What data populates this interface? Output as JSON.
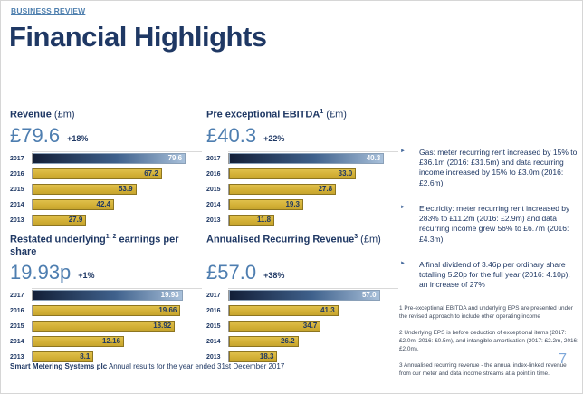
{
  "header": {
    "eyebrow": "BUSINESS REVIEW",
    "title": "Financial Highlights"
  },
  "colors": {
    "navy": "#1f3864",
    "accent_blue": "#4e7eb0",
    "light_blue_page_number": "#7da7d9",
    "gold_bar": "#d2af35",
    "gold_bar_border": "#8d7520",
    "highlight_bar_gradient": [
      "#131f38",
      "#a8c0da"
    ]
  },
  "chart_data": [
    {
      "type": "bar",
      "orientation": "horizontal",
      "title": "Revenue (£m)",
      "title_parts": {
        "pre": "Revenue",
        "sup": "",
        "post": "",
        "unit": " (£m)"
      },
      "headline": "£79.6",
      "change": "+18%",
      "categories": [
        "2017",
        "2016",
        "2015",
        "2014",
        "2013"
      ],
      "values": [
        79.6,
        67.2,
        53.9,
        42.4,
        27.9
      ],
      "value_labels": [
        "79.6",
        "67.2",
        "53.9",
        "42.4",
        "27.9"
      ],
      "xlim": [
        0,
        88
      ],
      "highlight_index": 0,
      "legend": "none",
      "grid": false
    },
    {
      "type": "bar",
      "orientation": "horizontal",
      "title": "Pre exceptional EBITDA¹ (£m)",
      "title_parts": {
        "pre": "Pre exceptional EBITDA",
        "sup": "1",
        "post": "",
        "unit": " (£m)"
      },
      "headline": "£40.3",
      "change": "+22%",
      "categories": [
        "2017",
        "2016",
        "2015",
        "2014",
        "2013"
      ],
      "values": [
        40.3,
        33.0,
        27.8,
        19.3,
        11.8
      ],
      "value_labels": [
        "40.3",
        "33.0",
        "27.8",
        "19.3",
        "11.8"
      ],
      "xlim": [
        0,
        44
      ],
      "highlight_index": 0,
      "legend": "none",
      "grid": false
    },
    {
      "type": "bar",
      "orientation": "horizontal",
      "title": "Restated underlying¹, ² earnings per share",
      "title_parts": {
        "pre": "Restated underlying",
        "sup": "1, 2",
        "post": " earnings per share",
        "unit": ""
      },
      "headline": "19.93p",
      "change": "+1%",
      "categories": [
        "2017",
        "2016",
        "2015",
        "2014",
        "2013"
      ],
      "values": [
        19.93,
        19.66,
        18.92,
        12.16,
        8.1
      ],
      "value_labels": [
        "19.93",
        "19.66",
        "18.92",
        "12.16",
        "8.1"
      ],
      "xlim": [
        0,
        22.5
      ],
      "highlight_index": 0,
      "legend": "none",
      "grid": false
    },
    {
      "type": "bar",
      "orientation": "horizontal",
      "title": "Annualised Recurring Revenue³ (£m)",
      "title_parts": {
        "pre": "Annualised Recurring Revenue",
        "sup": "3",
        "post": "",
        "unit": " (£m)"
      },
      "headline": "£57.0",
      "change": "+38%",
      "categories": [
        "2017",
        "2016",
        "2015",
        "2014",
        "2013"
      ],
      "values": [
        57.0,
        41.3,
        34.7,
        26.2,
        18.3
      ],
      "value_labels": [
        "57.0",
        "41.3",
        "34.7",
        "26.2",
        "18.3"
      ],
      "xlim": [
        0,
        64
      ],
      "highlight_index": 0,
      "legend": "none",
      "grid": false
    }
  ],
  "bullets": [
    {
      "text": "Gas: meter recurring rent increased by 15% to £36.1m (2016: £31.5m) and data recurring income increased by 15% to £3.0m (2016: £2.6m)"
    },
    {
      "text": "Electricity: meter recurring rent increased by 283% to £11.2m (2016: £2.9m) and data recurring income grew 56% to £6.7m (2016: £4.3m)"
    },
    {
      "text": "A final dividend of 3.46p per ordinary share totalling 5.20p for the full year (2016: 4.10p), an increase of 27%"
    }
  ],
  "footnotes": [
    {
      "text": "1 Pre-exceptional EBITDA and underlying EPS are presented under the revised approach to include other operating income"
    },
    {
      "text": "2 Underlying EPS is before deduction of exceptional items (2017: £2.0m, 2016: £0.5m), and intangible amortisation (2017: £2.2m, 2016: £2.0m)."
    },
    {
      "text": "3 Annualised recurring revenue - the annual index-linked revenue from our meter and data income streams at a point in time."
    }
  ],
  "footer": {
    "company": "Smart Metering Systems plc",
    "caption": " Annual results for the year ended 31st December 2017",
    "page_number": "7"
  }
}
